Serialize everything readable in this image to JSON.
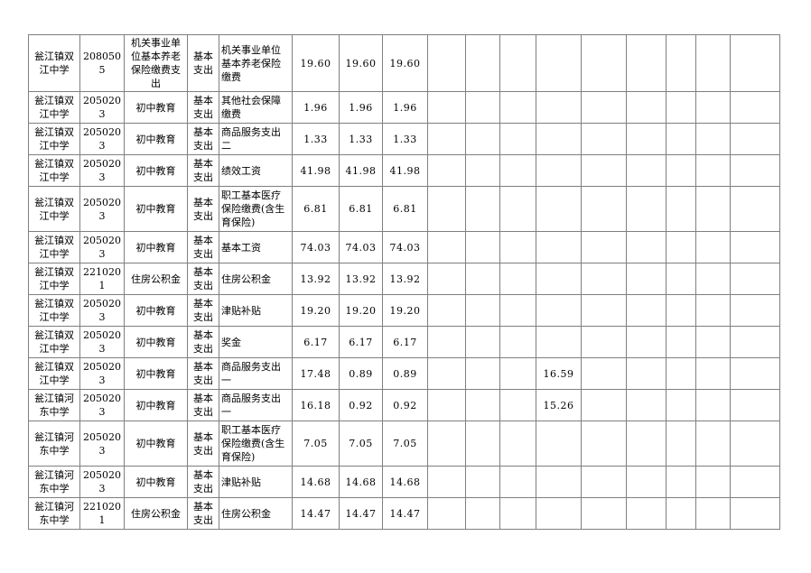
{
  "colors": {
    "grid_line": "#7f7f7f",
    "text": "#000000",
    "background": "#ffffff"
  },
  "table": {
    "rows": [
      {
        "school": "瓮江镇双江中学",
        "code": "2080505",
        "category": "机关事业单位基本养老保险缴费支出",
        "expense_type": "基本支出",
        "item": "机关事业单位基本养老保险缴费",
        "values": [
          "19.60",
          "19.60",
          "19.60",
          "",
          "",
          "",
          "",
          "",
          "",
          "",
          "",
          ""
        ]
      },
      {
        "school": "瓮江镇双江中学",
        "code": "2050203",
        "category": "初中教育",
        "expense_type": "基本支出",
        "item": "其他社会保障缴费",
        "values": [
          "1.96",
          "1.96",
          "1.96",
          "",
          "",
          "",
          "",
          "",
          "",
          "",
          "",
          ""
        ]
      },
      {
        "school": "瓮江镇双江中学",
        "code": "2050203",
        "category": "初中教育",
        "expense_type": "基本支出",
        "item": "商品服务支出二",
        "values": [
          "1.33",
          "1.33",
          "1.33",
          "",
          "",
          "",
          "",
          "",
          "",
          "",
          "",
          ""
        ]
      },
      {
        "school": "瓮江镇双江中学",
        "code": "2050203",
        "category": "初中教育",
        "expense_type": "基本支出",
        "item": "绩效工资",
        "values": [
          "41.98",
          "41.98",
          "41.98",
          "",
          "",
          "",
          "",
          "",
          "",
          "",
          "",
          ""
        ]
      },
      {
        "school": "瓮江镇双江中学",
        "code": "2050203",
        "category": "初中教育",
        "expense_type": "基本支出",
        "item": "职工基本医疗保险缴费(含生育保险)",
        "values": [
          "6.81",
          "6.81",
          "6.81",
          "",
          "",
          "",
          "",
          "",
          "",
          "",
          "",
          ""
        ]
      },
      {
        "school": "瓮江镇双江中学",
        "code": "2050203",
        "category": "初中教育",
        "expense_type": "基本支出",
        "item": "基本工资",
        "values": [
          "74.03",
          "74.03",
          "74.03",
          "",
          "",
          "",
          "",
          "",
          "",
          "",
          "",
          ""
        ]
      },
      {
        "school": "瓮江镇双江中学",
        "code": "2210201",
        "category": "住房公积金",
        "expense_type": "基本支出",
        "item": "住房公积金",
        "values": [
          "13.92",
          "13.92",
          "13.92",
          "",
          "",
          "",
          "",
          "",
          "",
          "",
          "",
          ""
        ]
      },
      {
        "school": "瓮江镇双江中学",
        "code": "2050203",
        "category": "初中教育",
        "expense_type": "基本支出",
        "item": "津贴补贴",
        "values": [
          "19.20",
          "19.20",
          "19.20",
          "",
          "",
          "",
          "",
          "",
          "",
          "",
          "",
          ""
        ]
      },
      {
        "school": "瓮江镇双江中学",
        "code": "2050203",
        "category": "初中教育",
        "expense_type": "基本支出",
        "item": "奖金",
        "values": [
          "6.17",
          "6.17",
          "6.17",
          "",
          "",
          "",
          "",
          "",
          "",
          "",
          "",
          ""
        ]
      },
      {
        "school": "瓮江镇双江中学",
        "code": "2050203",
        "category": "初中教育",
        "expense_type": "基本支出",
        "item": "商品服务支出一",
        "values": [
          "17.48",
          "0.89",
          "0.89",
          "",
          "",
          "",
          "16.59",
          "",
          "",
          "",
          "",
          ""
        ]
      },
      {
        "school": "瓮江镇河东中学",
        "code": "2050203",
        "category": "初中教育",
        "expense_type": "基本支出",
        "item": "商品服务支出一",
        "values": [
          "16.18",
          "0.92",
          "0.92",
          "",
          "",
          "",
          "15.26",
          "",
          "",
          "",
          "",
          ""
        ]
      },
      {
        "school": "瓮江镇河东中学",
        "code": "2050203",
        "category": "初中教育",
        "expense_type": "基本支出",
        "item": "职工基本医疗保险缴费(含生育保险)",
        "values": [
          "7.05",
          "7.05",
          "7.05",
          "",
          "",
          "",
          "",
          "",
          "",
          "",
          "",
          ""
        ]
      },
      {
        "school": "瓮江镇河东中学",
        "code": "2050203",
        "category": "初中教育",
        "expense_type": "基本支出",
        "item": "津贴补贴",
        "values": [
          "14.68",
          "14.68",
          "14.68",
          "",
          "",
          "",
          "",
          "",
          "",
          "",
          "",
          ""
        ]
      },
      {
        "school": "瓮江镇河东中学",
        "code": "2210201",
        "category": "住房公积金",
        "expense_type": "基本支出",
        "item": "住房公积金",
        "values": [
          "14.47",
          "14.47",
          "14.47",
          "",
          "",
          "",
          "",
          "",
          "",
          "",
          "",
          ""
        ]
      }
    ]
  }
}
